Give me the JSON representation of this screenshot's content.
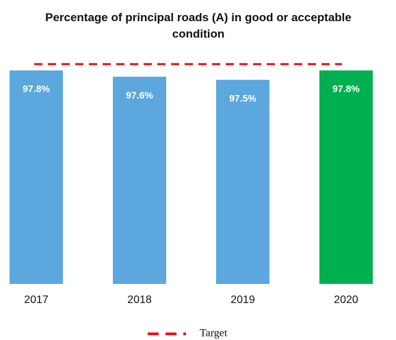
{
  "chart_data": {
    "type": "bar",
    "title": "Percentage of principal roads (A) in good or acceptable condition",
    "categories": [
      "2017",
      "2018",
      "2019",
      "2020"
    ],
    "values": [
      97.8,
      97.6,
      97.5,
      97.8
    ],
    "value_labels": [
      "97.8%",
      "97.6%",
      "97.5%",
      "97.8%"
    ],
    "colors": [
      "#5ba7de",
      "#5ba7de",
      "#5ba7de",
      "#00b050"
    ],
    "target": {
      "name": "Target",
      "value": 98,
      "color": "#e8141c"
    },
    "ylim": [
      91,
      100
    ]
  }
}
